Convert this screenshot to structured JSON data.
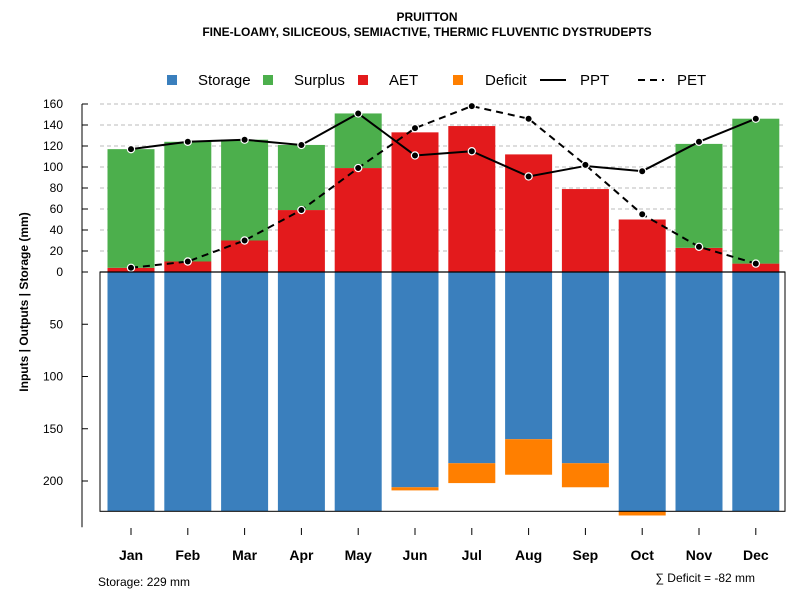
{
  "chart_data": {
    "type": "bar",
    "title": "PRUITTON",
    "subtitle": "FINE-LOAMY, SILICEOUS, SEMIACTIVE, THERMIC FLUVENTIC DYSTRUDEPTS",
    "ylabel": "Inputs | Outputs | Storage    (mm)",
    "categories": [
      "Jan",
      "Feb",
      "Mar",
      "Apr",
      "May",
      "Jun",
      "Jul",
      "Aug",
      "Sep",
      "Oct",
      "Nov",
      "Dec"
    ],
    "upper_axis": {
      "ylim": [
        0,
        160
      ],
      "ticks": [
        "0",
        "20",
        "40",
        "60",
        "80",
        "100",
        "120",
        "140",
        "160"
      ]
    },
    "lower_axis": {
      "ylim": [
        0,
        229
      ],
      "ticks": [
        "50",
        "100",
        "150",
        "200"
      ]
    },
    "series": [
      {
        "name": "AET",
        "values": [
          4,
          10,
          30,
          59,
          99,
          133,
          139,
          112,
          79,
          50,
          23,
          8
        ]
      },
      {
        "name": "Surplus",
        "values": [
          113,
          114,
          96,
          62,
          52,
          0,
          0,
          0,
          0,
          0,
          99,
          138
        ]
      },
      {
        "name": "Storage",
        "values": [
          229,
          229,
          229,
          229,
          229,
          206,
          183,
          160,
          183,
          229,
          229,
          229
        ]
      },
      {
        "name": "Deficit",
        "values": [
          0,
          0,
          0,
          0,
          0,
          3,
          19,
          34,
          23,
          4,
          0,
          0
        ]
      },
      {
        "name": "PPT",
        "values": [
          117,
          124,
          126,
          121,
          151,
          111,
          115,
          91,
          101,
          96,
          124,
          146
        ]
      },
      {
        "name": "PET",
        "values": [
          4,
          10,
          30,
          59,
          99,
          137,
          158,
          146,
          102,
          55,
          24,
          8
        ]
      }
    ],
    "legend": [
      "Storage",
      "Surplus",
      "AET",
      "Deficit",
      "PPT",
      "PET"
    ],
    "legend_position": "top",
    "grid": true,
    "footer_left": "Storage: 229 mm",
    "footer_right": "∑ Deficit = -82 mm"
  },
  "colors": {
    "storage": "#3a7fbd",
    "surplus": "#4caf4c",
    "aet": "#e31a1c",
    "deficit": "#ff7f00",
    "grid": "#bbbbbb"
  }
}
